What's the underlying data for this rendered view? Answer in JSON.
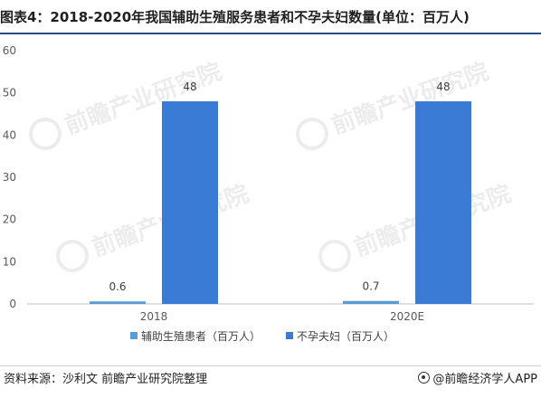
{
  "title": "图表4：2018-2020年我国辅助生殖服务患者和不孕夫妇数量(单位：百万人)",
  "source": "资料来源：沙利文 前瞻产业研究院整理",
  "brand": "@前瞻经济学人APP",
  "watermark_text": "前瞻产业研究院",
  "colors": {
    "series1": "#5b9bd5",
    "series2": "#3a7bd5",
    "axis": "#bfbfbf",
    "tick_text": "#595959",
    "label_text": "#404040"
  },
  "chart_data": {
    "type": "bar",
    "categories": [
      "2018",
      "2020E"
    ],
    "series": [
      {
        "name": "辅助生殖患者（百万人）",
        "values": [
          0.6,
          0.7
        ]
      },
      {
        "name": "不孕夫妇（百万人）",
        "values": [
          48,
          48
        ]
      }
    ],
    "ylim": [
      0,
      60
    ],
    "yticks": [
      0,
      10,
      20,
      30,
      40,
      50,
      60
    ],
    "data_labels": [
      [
        "0.6",
        "0.7"
      ],
      [
        "48",
        "48"
      ]
    ],
    "grid": false,
    "legend_position": "bottom"
  }
}
